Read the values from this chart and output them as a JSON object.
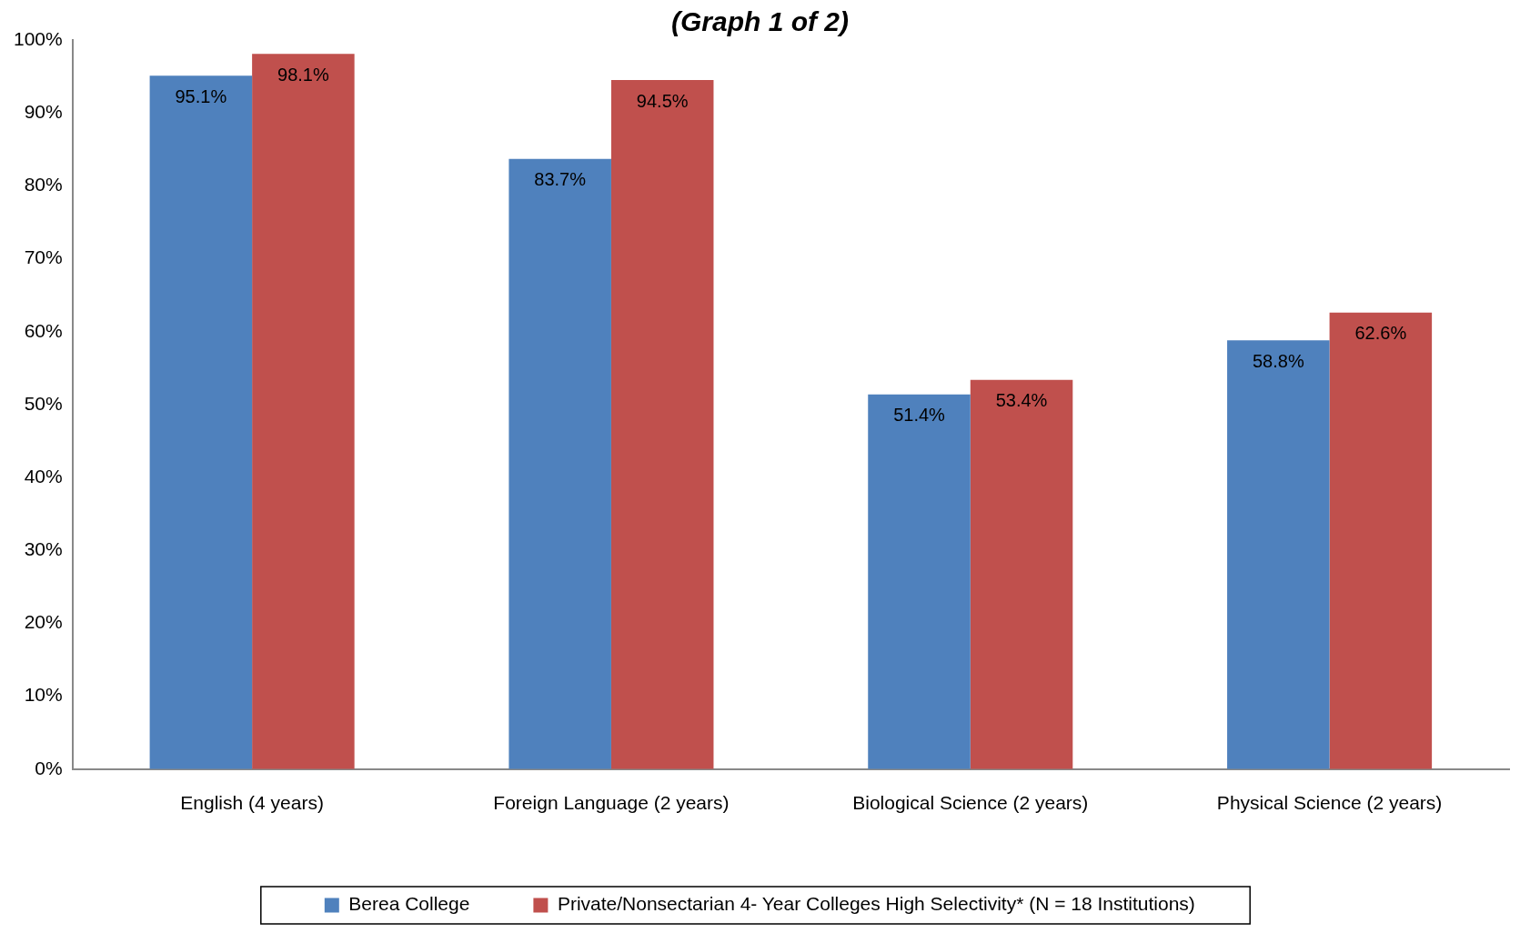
{
  "chart_data": {
    "type": "bar",
    "title": "(Graph 1 of 2)",
    "categories": [
      "English (4 years)",
      "Foreign Language (2 years)",
      "Biological Science (2 years)",
      "Physical Science (2 years)"
    ],
    "series": [
      {
        "name": "Berea College",
        "color": "#4f81bd",
        "values": [
          95.1,
          83.7,
          51.4,
          58.8
        ],
        "value_labels": [
          "95.1%",
          "83.7%",
          "51.4%",
          "58.8%"
        ]
      },
      {
        "name": "Private/Nonsectarian 4- Year Colleges High Selectivity* (N = 18 Institutions)",
        "color": "#c0504d",
        "values": [
          98.1,
          94.5,
          53.4,
          62.6
        ],
        "value_labels": [
          "98.1%",
          "94.5%",
          "53.4%",
          "62.6%"
        ]
      }
    ],
    "ylim": [
      0,
      100
    ],
    "yticks": [
      {
        "value": 0,
        "label": "0%"
      },
      {
        "value": 10,
        "label": "10%"
      },
      {
        "value": 20,
        "label": "20%"
      },
      {
        "value": 30,
        "label": "30%"
      },
      {
        "value": 40,
        "label": "40%"
      },
      {
        "value": 50,
        "label": "50%"
      },
      {
        "value": 60,
        "label": "60%"
      },
      {
        "value": 70,
        "label": "70%"
      },
      {
        "value": 80,
        "label": "80%"
      },
      {
        "value": 90,
        "label": "90%"
      },
      {
        "value": 100,
        "label": "100%"
      }
    ],
    "grid": false,
    "legend": "bottom"
  }
}
